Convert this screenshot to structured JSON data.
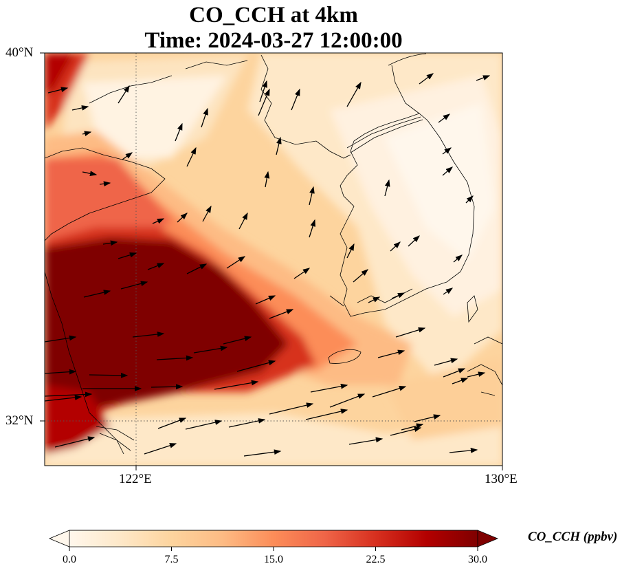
{
  "title": {
    "line1": "CO_CCH at 4km",
    "line2": "Time: 2024-03-27 12:00:00"
  },
  "map": {
    "lat_range": [
      31.2,
      40
    ],
    "lon_range": [
      120,
      130
    ],
    "lat_ticks": [
      {
        "value": 40,
        "label": "40°N"
      },
      {
        "value": 32,
        "label": "32°N"
      }
    ],
    "lon_ticks": [
      {
        "value": 122,
        "label": "122°E"
      },
      {
        "value": 130,
        "label": "130°E"
      }
    ],
    "gridlines": "dotted",
    "coastlines": true,
    "variable": "CO_CCH",
    "units": "ppbv",
    "level": "4km",
    "field_description": "Highest concentrations (≥30 ppbv) over East China plain and Yellow Sea south-west; moderate (10–20 ppbv) plume over Yellow Sea and northern Bohai; low (<5 ppbv) over Korean Peninsula and East Sea.",
    "wind_vectors": "Predominantly westerly to south-westerly flow; northward components over Yellow Sea and Korea."
  },
  "colorbar": {
    "cmap": "OrRd",
    "min": 0,
    "max": 30,
    "extend": "both",
    "ticks": [
      "0.0",
      "7.5",
      "15.0",
      "22.5",
      "30.0"
    ],
    "label": "CO_CCH (ppbv)",
    "colors": [
      "#fff7ec",
      "#fee8c8",
      "#fdd49e",
      "#fdbb84",
      "#fc8d59",
      "#ef6548",
      "#d7301f",
      "#b30000",
      "#7f0000"
    ]
  }
}
